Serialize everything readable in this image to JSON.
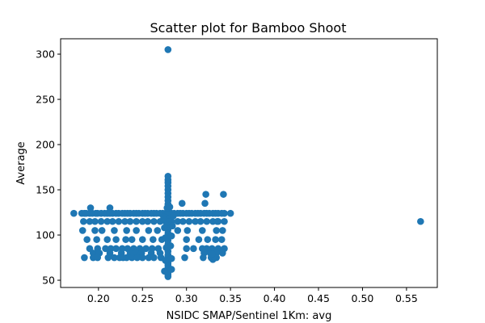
{
  "chart_data": {
    "type": "scatter",
    "title": "Scatter plot for Bamboo Shoot",
    "xlabel": "NSIDC SMAP/Sentinel 1Km: avg",
    "ylabel": "Average",
    "xlim": [
      0.157,
      0.585
    ],
    "ylim": [
      42,
      317
    ],
    "xticks": [
      0.2,
      0.25,
      0.3,
      0.35,
      0.4,
      0.45,
      0.5,
      0.55
    ],
    "xtick_labels": [
      "0.20",
      "0.25",
      "0.30",
      "0.35",
      "0.40",
      "0.45",
      "0.50",
      "0.55"
    ],
    "yticks": [
      50,
      100,
      150,
      200,
      250,
      300
    ],
    "ytick_labels": [
      "50",
      "100",
      "150",
      "200",
      "250",
      "300"
    ],
    "grid": false,
    "marker_color": "#1f77b4",
    "series": [
      {
        "x": [
          0.172,
          0.181,
          0.184,
          0.186,
          0.19,
          0.193,
          0.197,
          0.199,
          0.203,
          0.207,
          0.21,
          0.213,
          0.216,
          0.22,
          0.223,
          0.227,
          0.23,
          0.233,
          0.236,
          0.24,
          0.243,
          0.246,
          0.25,
          0.253,
          0.256,
          0.26,
          0.263,
          0.266,
          0.27,
          0.273,
          0.276,
          0.28,
          0.283,
          0.286,
          0.29,
          0.293,
          0.296,
          0.3,
          0.303,
          0.306,
          0.31,
          0.313,
          0.316,
          0.32,
          0.323,
          0.326,
          0.33,
          0.333,
          0.336,
          0.34,
          0.343,
          0.35,
          0.183,
          0.19,
          0.196,
          0.203,
          0.21,
          0.216,
          0.223,
          0.23,
          0.236,
          0.243,
          0.25,
          0.256,
          0.263,
          0.27,
          0.276,
          0.283,
          0.29,
          0.296,
          0.303,
          0.31,
          0.316,
          0.323,
          0.33,
          0.336,
          0.343,
          0.182,
          0.196,
          0.204,
          0.218,
          0.232,
          0.243,
          0.257,
          0.267,
          0.29,
          0.301,
          0.318,
          0.334,
          0.341,
          0.187,
          0.198,
          0.21,
          0.22,
          0.231,
          0.238,
          0.25,
          0.262,
          0.272,
          0.3,
          0.314,
          0.324,
          0.333,
          0.34,
          0.19,
          0.199,
          0.208,
          0.214,
          0.22,
          0.227,
          0.233,
          0.24,
          0.247,
          0.254,
          0.261,
          0.268,
          0.3,
          0.308,
          0.318,
          0.323,
          0.329,
          0.336,
          0.343,
          0.194,
          0.201,
          0.213,
          0.226,
          0.236,
          0.243,
          0.249,
          0.26,
          0.27,
          0.32,
          0.327,
          0.334,
          0.341,
          0.184,
          0.194,
          0.199,
          0.211,
          0.218,
          0.224,
          0.228,
          0.232,
          0.238,
          0.244,
          0.25,
          0.257,
          0.263,
          0.271,
          0.298,
          0.319,
          0.328,
          0.331,
          0.334,
          0.279,
          0.279,
          0.279,
          0.279,
          0.279,
          0.279,
          0.279,
          0.279,
          0.279,
          0.279,
          0.279,
          0.279,
          0.279,
          0.279,
          0.279,
          0.279,
          0.279,
          0.279,
          0.279,
          0.279,
          0.279,
          0.279,
          0.279,
          0.279,
          0.279,
          0.279,
          0.279,
          0.279,
          0.279,
          0.279,
          0.279,
          0.279,
          0.279,
          0.275,
          0.283,
          0.276,
          0.283,
          0.277,
          0.282,
          0.276,
          0.283,
          0.275,
          0.284,
          0.274,
          0.285,
          0.278,
          0.281,
          0.279,
          0.295,
          0.322,
          0.342,
          0.321,
          0.335,
          0.213,
          0.191,
          0.33,
          0.331,
          0.329,
          0.566
        ],
        "y": [
          124,
          124,
          124,
          124,
          124,
          124,
          124,
          124,
          124,
          124,
          124,
          124,
          124,
          124,
          124,
          124,
          124,
          124,
          124,
          124,
          124,
          124,
          124,
          124,
          124,
          124,
          124,
          124,
          124,
          124,
          124,
          124,
          124,
          124,
          124,
          124,
          124,
          124,
          124,
          124,
          124,
          124,
          124,
          124,
          124,
          124,
          124,
          124,
          124,
          124,
          124,
          124,
          115,
          115,
          115,
          115,
          115,
          115,
          115,
          115,
          115,
          115,
          115,
          115,
          115,
          115,
          115,
          115,
          115,
          115,
          115,
          115,
          115,
          115,
          115,
          115,
          115,
          105,
          105,
          105,
          105,
          105,
          105,
          105,
          105,
          105,
          105,
          105,
          105,
          105,
          95,
          95,
          95,
          95,
          95,
          95,
          95,
          95,
          95,
          95,
          95,
          95,
          95,
          95,
          85,
          85,
          85,
          85,
          85,
          85,
          85,
          85,
          85,
          85,
          85,
          85,
          85,
          85,
          85,
          85,
          85,
          85,
          85,
          80,
          80,
          80,
          80,
          80,
          80,
          80,
          80,
          80,
          80,
          80,
          80,
          80,
          75,
          75,
          75,
          75,
          75,
          75,
          75,
          75,
          75,
          75,
          75,
          75,
          75,
          75,
          75,
          75,
          75,
          75,
          75,
          54,
          56,
          58,
          60,
          63,
          66,
          68,
          70,
          73,
          76,
          78,
          82,
          87,
          90,
          94,
          98,
          102,
          106,
          110,
          114,
          118,
          122,
          126,
          130,
          134,
          138,
          142,
          146,
          150,
          154,
          158,
          161,
          165,
          60,
          62,
          72,
          74,
          86,
          88,
          97,
          99,
          108,
          110,
          120,
          121,
          130,
          131,
          305,
          135,
          145,
          145,
          135,
          115,
          130,
          130,
          73,
          76,
          79,
          115
        ]
      }
    ]
  }
}
